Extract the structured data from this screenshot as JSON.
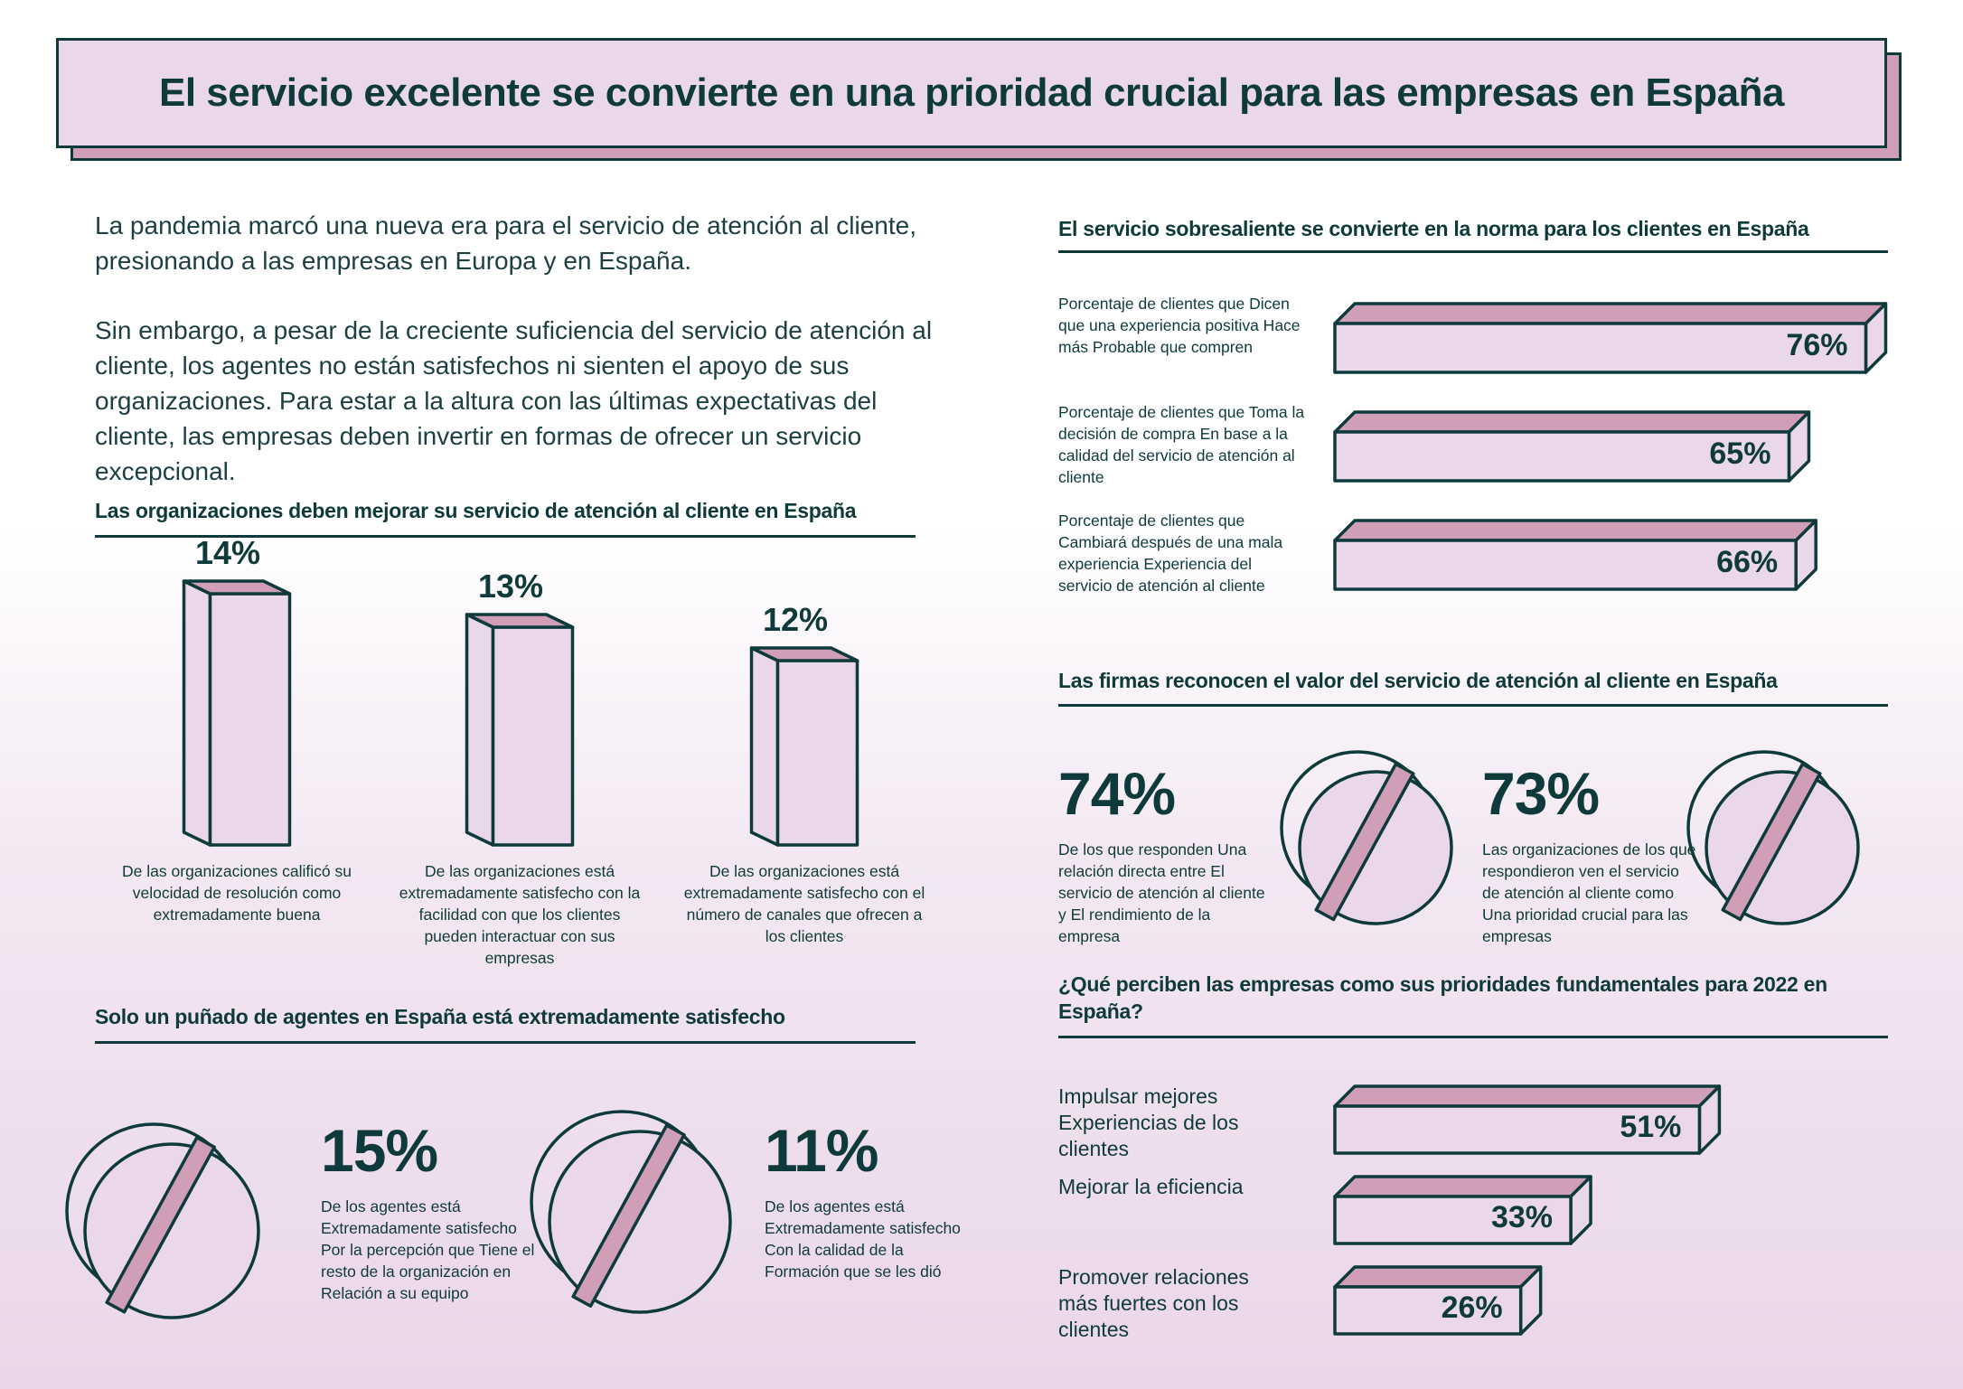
{
  "title": "El servicio excelente se convierte en una prioridad crucial para las empresas en España",
  "colors": {
    "ink": "#0e3a3c",
    "fill_light": "#ead8ea",
    "fill_accent": "#d09fb7"
  },
  "intro": {
    "p1": "La pandemia marcó una nueva era para el servicio de atención al cliente, presionando a las empresas en Europa y en España.",
    "p2": "Sin embargo, a pesar de la creciente suficiencia del servicio de atención al cliente, los agentes no están satisfechos ni sienten el apoyo de sus organizaciones. Para estar a la altura con las últimas expectativas del cliente, las empresas deben invertir en formas de ofrecer un servicio excepcional."
  },
  "sections": {
    "orgs": {
      "heading": "Las organizaciones deben mejorar su servicio de atención al cliente en España"
    },
    "agents": {
      "heading": "Solo un puñado de agentes en España está extremadamente satisfecho"
    },
    "norm": {
      "heading": "El servicio sobresaliente se convierte en la norma para los clientes en España"
    },
    "firms": {
      "heading": "Las firmas reconocen el valor del servicio de atención al cliente en España"
    },
    "priorities": {
      "heading": "¿Qué perciben las empresas como sus prioridades fundamentales para 2022 en España?"
    }
  },
  "chart_data": [
    {
      "id": "orgs",
      "type": "bar",
      "title": "Las organizaciones deben mejorar su servicio de atención al cliente en España",
      "orientation": "vertical",
      "categories": [
        "De las organizaciones calificó su velocidad de resolución como extremadamente buena",
        "De las organizaciones está extremadamente satisfecho con la facilidad con que los clientes pueden interactuar con sus empresas",
        "De las organizaciones está extremadamente satisfecho con el número de canales que ofrecen a los clientes"
      ],
      "values": [
        14,
        13,
        12
      ],
      "labels": [
        "14%",
        "13%",
        "12%"
      ],
      "unit": "%"
    },
    {
      "id": "agents",
      "type": "pie",
      "title": "Solo un puñado de agentes en España está extremadamente satisfecho",
      "items": [
        {
          "value": 15,
          "label": "15%",
          "text": "De los agentes está Extremadamente satisfecho Por la percepción que Tiene el resto de la organización en Relación a su equipo"
        },
        {
          "value": 11,
          "label": "11%",
          "text": "De los agentes está Extremadamente satisfecho Con la calidad de la Formación que se les dió"
        }
      ],
      "unit": "%"
    },
    {
      "id": "norm",
      "type": "bar",
      "title": "El servicio sobresaliente se convierte en la norma para los clientes en España",
      "orientation": "horizontal",
      "categories": [
        "Porcentaje de clientes que Dicen que una experiencia positiva Hace más Probable que compren",
        "Porcentaje de clientes que Toma la decisión de compra En base a la calidad del servicio de atención al cliente",
        "Porcentaje de clientes que Cambiará después de una mala experiencia Experiencia del servicio de atención al cliente"
      ],
      "values": [
        76,
        65,
        66
      ],
      "labels": [
        "76%",
        "65%",
        "66%"
      ],
      "unit": "%"
    },
    {
      "id": "firms",
      "type": "pie",
      "title": "Las firmas reconocen el valor del servicio de atención al cliente en España",
      "items": [
        {
          "value": 74,
          "label": "74%",
          "text": "De los que responden Una relación directa entre El servicio de atención al cliente y El rendimiento de la empresa"
        },
        {
          "value": 73,
          "label": "73%",
          "text": "Las organizaciones de los que respondieron ven el servicio de atención al cliente como Una prioridad crucial para las empresas"
        }
      ],
      "unit": "%"
    },
    {
      "id": "priorities",
      "type": "bar",
      "title": "¿Qué perciben las empresas como sus prioridades fundamentales para 2022 en España?",
      "orientation": "horizontal",
      "categories": [
        "Impulsar mejores Experiencias de los clientes",
        "Mejorar la eficiencia",
        "Promover relaciones más fuertes con los clientes"
      ],
      "values": [
        51,
        33,
        26
      ],
      "labels": [
        "51%",
        "33%",
        "26%"
      ],
      "unit": "%"
    }
  ]
}
